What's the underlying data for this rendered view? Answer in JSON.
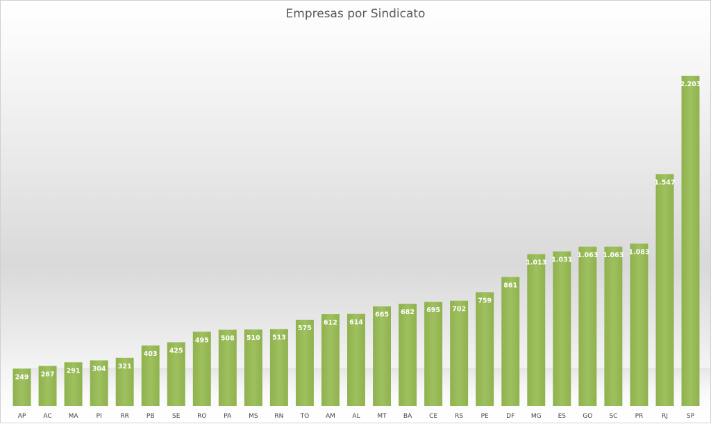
{
  "chart_data": {
    "type": "bar",
    "title": "Empresas por Sindicato",
    "categories": [
      "AP",
      "AC",
      "MA",
      "PI",
      "RR",
      "PB",
      "SE",
      "RO",
      "PA",
      "MS",
      "RN",
      "TO",
      "AM",
      "AL",
      "MT",
      "BA",
      "CE",
      "RS",
      "PE",
      "DF",
      "MG",
      "ES",
      "GO",
      "SC",
      "PR",
      "RJ",
      "SP"
    ],
    "values": [
      249,
      267,
      291,
      304,
      321,
      403,
      425,
      495,
      508,
      510,
      513,
      575,
      612,
      614,
      665,
      682,
      695,
      702,
      759,
      861,
      1013,
      1031,
      1063,
      1063,
      1083,
      1547,
      2203
    ],
    "value_labels": [
      "249",
      "267",
      "291",
      "304",
      "321",
      "403",
      "425",
      "495",
      "508",
      "510",
      "513",
      "575",
      "612",
      "614",
      "665",
      "682",
      "695",
      "702",
      "759",
      "861",
      "1.013",
      "1.031",
      "1.063",
      "1.063",
      "1.083",
      "1.547",
      "2.203"
    ],
    "xlabel": "",
    "ylabel": "",
    "grid": false,
    "bar_color": "#9bbb59"
  }
}
